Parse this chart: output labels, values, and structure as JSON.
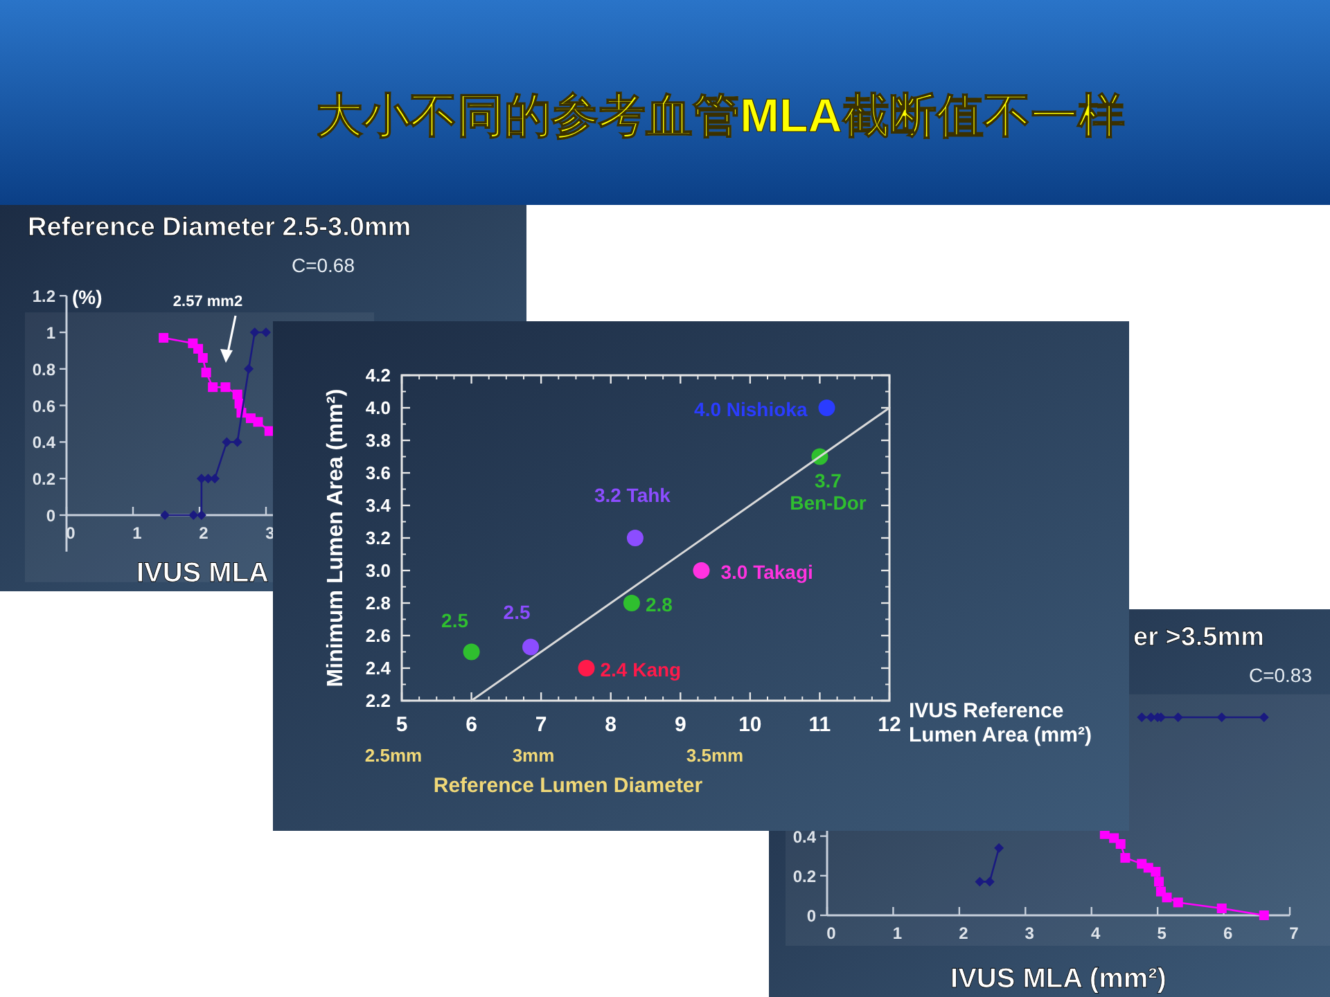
{
  "chart_data": [
    {
      "type": "line",
      "title": "Reference Diameter 2.5-3.0mm",
      "xlabel": "IVUS MLA",
      "ylabel": "(%)",
      "xlim": [
        0,
        4
      ],
      "ylim": [
        -0.2,
        1.2
      ],
      "xticks": [
        0,
        1,
        2,
        3
      ],
      "yticks": [
        0,
        0.2,
        0.4,
        0.6,
        0.8,
        1,
        1.2
      ],
      "annotations": [
        "C=0.68",
        "2.57 mm2"
      ],
      "series": [
        {
          "color": "#ff00ff",
          "marker": "square",
          "x": [
            1.46,
            1.9,
            1.98,
            2.05,
            2.1,
            2.2,
            2.39,
            2.57,
            2.6,
            2.63,
            2.77,
            2.88,
            3.05
          ],
          "values": [
            0.97,
            0.94,
            0.91,
            0.86,
            0.78,
            0.7,
            0.7,
            0.66,
            0.61,
            0.56,
            0.53,
            0.51,
            0.46
          ]
        },
        {
          "color": "#1a1a80",
          "marker": "diamond",
          "x": [
            1.48,
            1.91,
            2.03,
            2.03,
            2.13,
            2.23,
            2.41,
            2.57,
            2.74,
            2.83,
            3.0
          ],
          "values": [
            0,
            0,
            0,
            0.2,
            0.2,
            0.2,
            0.4,
            0.4,
            0.8,
            1.0,
            1.0
          ]
        }
      ]
    },
    {
      "type": "scatter",
      "title": "大小不同的参考血管MLA截断值不一样",
      "xlabel": "IVUS Reference\nLumen Area (mm²)",
      "ylabel": "Minimum Lumen Area (mm²)",
      "x2label": "Reference Lumen Diameter",
      "xlim": [
        5,
        12
      ],
      "ylim": [
        2.2,
        4.2
      ],
      "xticks": [
        5,
        6,
        7,
        8,
        9,
        10,
        11,
        12
      ],
      "yticks": [
        {
          "value": 2.2,
          "label": "2.2"
        },
        {
          "value": 2.4,
          "label": "2.4"
        },
        {
          "value": 2.6,
          "label": "2.6"
        },
        {
          "value": 2.8,
          "label": "2.8"
        },
        {
          "value": 3.0,
          "label": "3.0"
        },
        {
          "value": 3.2,
          "label": "3.2"
        },
        {
          "value": 3.4,
          "label": "3.4"
        },
        {
          "value": 3.6,
          "label": "3.6"
        },
        {
          "value": 3.8,
          "label": "3.8"
        },
        {
          "value": 4.0,
          "label": "4.0"
        },
        {
          "value": 4.2,
          "label": "4.2"
        }
      ],
      "series": [
        {
          "type": "scatter",
          "marker": "circle",
          "x": [
            11.1,
            11.0,
            8.35,
            9.3,
            8.3,
            6.0,
            6.85,
            7.65
          ],
          "values": [
            4.0,
            3.7,
            3.2,
            3.0,
            2.8,
            2.5,
            2.53,
            2.4
          ],
          "colors": [
            "#2a3cff",
            "#2fbf2f",
            "#8c4dff",
            "#ff33e0",
            "#2fbf2f",
            "#2fbf2f",
            "#8c4dff",
            "#ff1a4a"
          ]
        },
        {
          "type": "line",
          "color": "#d9d9d9",
          "x": [
            6,
            12
          ],
          "values": [
            2.2,
            4.0
          ]
        }
      ],
      "annotations": [
        {
          "text": "4.0 Nishioka",
          "x": 11.1,
          "y": 4.0
        },
        {
          "text": "3.7\nBen-Dor",
          "x": 11.0,
          "y": 3.7
        },
        {
          "text": "3.2 Tahk",
          "x": 8.35,
          "y": 3.2
        },
        {
          "text": "3.0 Takagi",
          "x": 9.3,
          "y": 3.0
        },
        {
          "text": "2.8",
          "x": 8.3,
          "y": 2.8
        },
        {
          "text": "2.5",
          "x": 6.0,
          "y": 2.5
        },
        {
          "text": "2.5",
          "x": 6.85,
          "y": 2.53
        },
        {
          "text": "2.4 Kang",
          "x": 7.65,
          "y": 2.4
        },
        "2.5mm",
        "3mm",
        "3.5mm"
      ]
    },
    {
      "type": "line",
      "title": "er >3.5mm",
      "xlabel": "IVUS MLA (mm²)",
      "xlim": [
        0,
        7
      ],
      "ylim": [
        0,
        1.2
      ],
      "xticks": [
        0,
        1,
        2,
        3,
        4,
        5,
        6,
        7
      ],
      "yticks": [
        0,
        0.2,
        0.4
      ],
      "annotations": [
        "C=0.83"
      ],
      "series": [
        {
          "color": "#1a1a80",
          "marker": "diamond",
          "x": [
            2.31,
            2.46,
            2.6
          ],
          "values": [
            0.17,
            0.17,
            0.34
          ]
        },
        {
          "color": "#1a1a80",
          "marker": "diamond",
          "x": [
            4.76,
            4.9,
            5.0,
            5.05,
            5.31,
            5.97,
            6.61
          ],
          "values": [
            1.0,
            1.0,
            1.0,
            1.0,
            1.0,
            1.0,
            1.0
          ]
        },
        {
          "color": "#ff00ff",
          "marker": "square",
          "x": [
            4.2,
            4.34,
            4.44,
            4.51,
            4.76,
            4.86,
            4.97,
            5.02,
            5.05,
            5.14,
            5.31,
            5.97,
            6.61
          ],
          "values": [
            0.41,
            0.39,
            0.36,
            0.29,
            0.26,
            0.24,
            0.22,
            0.17,
            0.12,
            0.09,
            0.065,
            0.035,
            0
          ]
        }
      ]
    }
  ]
}
